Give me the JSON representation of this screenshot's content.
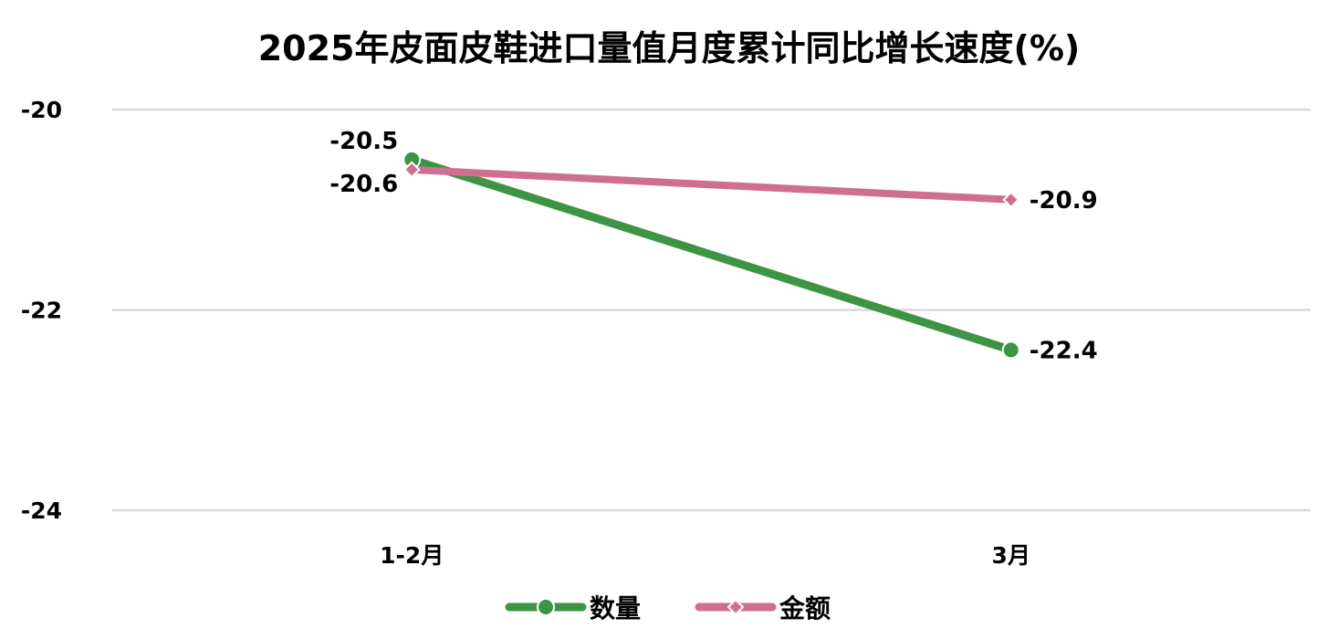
{
  "chart_data": {
    "type": "line",
    "title": "2025年皮面皮鞋进口量值月度累计同比增长速度(%)",
    "categories": [
      "1-2月",
      "3月"
    ],
    "ylim": [
      -24,
      -20
    ],
    "yticks": [
      -20,
      -22,
      -24
    ],
    "grid": true,
    "legend_position": "bottom",
    "series": [
      {
        "name": "数量",
        "values": [
          -20.5,
          -22.4
        ],
        "color": "#3c9444",
        "marker": "circle"
      },
      {
        "name": "金额",
        "values": [
          -20.6,
          -20.9
        ],
        "color": "#d06e92",
        "marker": "diamond"
      }
    ]
  }
}
